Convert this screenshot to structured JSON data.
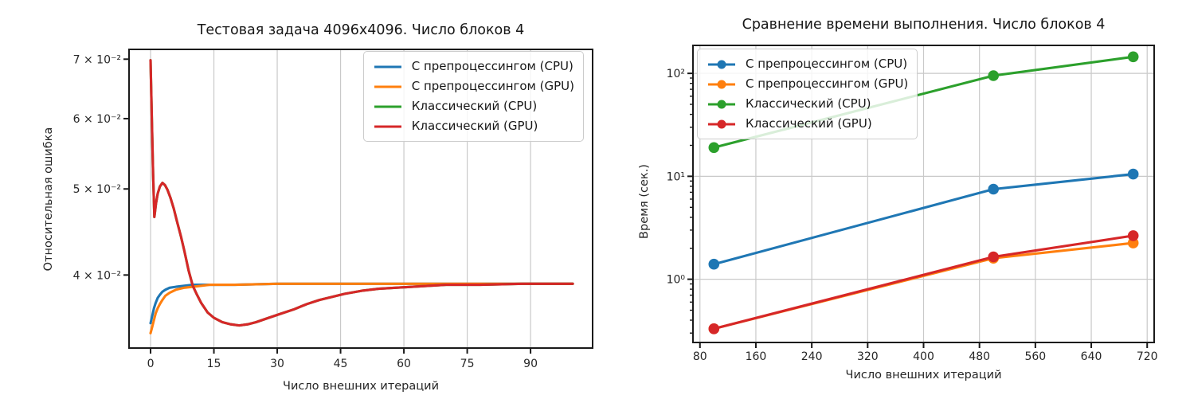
{
  "figure": {
    "background": "#ffffff"
  },
  "colors": {
    "grid": "#c9c9c9",
    "axis": "#1a1a1a",
    "text": "#262626",
    "blue": "#1f77b4",
    "orange": "#ff7f0e",
    "green": "#2ca02c",
    "red": "#d62728"
  },
  "chart_data": [
    {
      "id": "error-vs-iterations-chart",
      "type": "line",
      "title": "Тестовая задача 4096x4096. Число блоков 4",
      "xlabel": "Число внешних итераций",
      "ylabel": "Относительная ошибка",
      "x_scale": "linear",
      "y_scale": "log",
      "xlim": [
        -5.1,
        104.7
      ],
      "ylim": [
        0.0331,
        0.0718
      ],
      "x_ticks": [
        0,
        15,
        30,
        45,
        60,
        75,
        90
      ],
      "y_ticks": [
        {
          "v": 0.04,
          "label": "4 × 10⁻²"
        },
        {
          "v": 0.05,
          "label": "5 × 10⁻²"
        },
        {
          "v": 0.06,
          "label": "6 × 10⁻²"
        },
        {
          "v": 0.07,
          "label": "7 × 10⁻²"
        }
      ],
      "y_minor_ticks": false,
      "grid": {
        "vertical": true,
        "horizontal": false
      },
      "markers": false,
      "legend_position": "upper-right",
      "series": [
        {
          "name": "С препроцессингом (CPU)",
          "color": "#1f77b4",
          "points": [
            [
              0,
              0.0353
            ],
            [
              0.4,
              0.036
            ],
            [
              0.8,
              0.0367
            ],
            [
              1.2,
              0.0372
            ],
            [
              1.7,
              0.0377
            ],
            [
              2.2,
              0.038
            ],
            [
              2.8,
              0.0383
            ],
            [
              3.5,
              0.0385
            ],
            [
              4.5,
              0.0387
            ],
            [
              6,
              0.0388
            ],
            [
              8,
              0.0389
            ],
            [
              10,
              0.039
            ],
            [
              14,
              0.039
            ],
            [
              20,
              0.039
            ],
            [
              30,
              0.0391
            ],
            [
              45,
              0.0391
            ],
            [
              60,
              0.0391
            ],
            [
              80,
              0.0391
            ],
            [
              100,
              0.0391
            ]
          ]
        },
        {
          "name": "С препроцессингом (GPU)",
          "color": "#ff7f0e",
          "points": [
            [
              0,
              0.0344
            ],
            [
              0.4,
              0.035
            ],
            [
              0.8,
              0.0356
            ],
            [
              1.2,
              0.0362
            ],
            [
              1.7,
              0.0367
            ],
            [
              2.2,
              0.0371
            ],
            [
              2.8,
              0.0375
            ],
            [
              3.5,
              0.0379
            ],
            [
              4.5,
              0.0382
            ],
            [
              6,
              0.0385
            ],
            [
              8,
              0.0387
            ],
            [
              10,
              0.0388
            ],
            [
              14,
              0.039
            ],
            [
              20,
              0.039
            ],
            [
              30,
              0.0391
            ],
            [
              45,
              0.0391
            ],
            [
              60,
              0.0391
            ],
            [
              80,
              0.0391
            ],
            [
              100,
              0.0391
            ]
          ]
        },
        {
          "name": "Классический (CPU)",
          "color": "#2ca02c",
          "points": [
            [
              0,
              0.0698
            ],
            [
              0.3,
              0.06
            ],
            [
              0.6,
              0.052
            ],
            [
              0.9,
              0.0465
            ],
            [
              1.3,
              0.0482
            ],
            [
              1.7,
              0.0494
            ],
            [
              2.2,
              0.0503
            ],
            [
              2.8,
              0.0508
            ],
            [
              3.4,
              0.0505
            ],
            [
              4,
              0.0499
            ],
            [
              4.7,
              0.0489
            ],
            [
              5.5,
              0.0475
            ],
            [
              6.3,
              0.0459
            ],
            [
              7.2,
              0.0442
            ],
            [
              8,
              0.0426
            ],
            [
              9,
              0.0405
            ],
            [
              10,
              0.0389
            ],
            [
              11,
              0.038
            ],
            [
              12,
              0.0372
            ],
            [
              13.5,
              0.0363
            ],
            [
              15,
              0.0358
            ],
            [
              17,
              0.0354
            ],
            [
              19,
              0.0352
            ],
            [
              21,
              0.0351
            ],
            [
              23,
              0.0352
            ],
            [
              25,
              0.0354
            ],
            [
              28,
              0.0358
            ],
            [
              31,
              0.0362
            ],
            [
              34,
              0.0366
            ],
            [
              37,
              0.0371
            ],
            [
              40,
              0.0375
            ],
            [
              43,
              0.0378
            ],
            [
              46,
              0.0381
            ],
            [
              50,
              0.0384
            ],
            [
              54,
              0.0386
            ],
            [
              58,
              0.0387
            ],
            [
              62,
              0.0388
            ],
            [
              66,
              0.0389
            ],
            [
              70,
              0.039
            ],
            [
              78,
              0.039
            ],
            [
              88,
              0.0391
            ],
            [
              100,
              0.0391
            ]
          ]
        },
        {
          "name": "Классический (GPU)",
          "color": "#d62728",
          "points": [
            [
              0,
              0.0698
            ],
            [
              0.3,
              0.06
            ],
            [
              0.6,
              0.052
            ],
            [
              0.9,
              0.0465
            ],
            [
              1.3,
              0.0482
            ],
            [
              1.7,
              0.0494
            ],
            [
              2.2,
              0.0503
            ],
            [
              2.8,
              0.0508
            ],
            [
              3.4,
              0.0505
            ],
            [
              4,
              0.0499
            ],
            [
              4.7,
              0.0489
            ],
            [
              5.5,
              0.0475
            ],
            [
              6.3,
              0.0459
            ],
            [
              7.2,
              0.0442
            ],
            [
              8,
              0.0426
            ],
            [
              9,
              0.0405
            ],
            [
              10,
              0.0389
            ],
            [
              11,
              0.038
            ],
            [
              12,
              0.0372
            ],
            [
              13.5,
              0.0363
            ],
            [
              15,
              0.0358
            ],
            [
              17,
              0.0354
            ],
            [
              19,
              0.0352
            ],
            [
              21,
              0.0351
            ],
            [
              23,
              0.0352
            ],
            [
              25,
              0.0354
            ],
            [
              28,
              0.0358
            ],
            [
              31,
              0.0362
            ],
            [
              34,
              0.0366
            ],
            [
              37,
              0.0371
            ],
            [
              40,
              0.0375
            ],
            [
              43,
              0.0378
            ],
            [
              46,
              0.0381
            ],
            [
              50,
              0.0384
            ],
            [
              54,
              0.0386
            ],
            [
              58,
              0.0387
            ],
            [
              62,
              0.0388
            ],
            [
              66,
              0.0389
            ],
            [
              70,
              0.039
            ],
            [
              78,
              0.039
            ],
            [
              88,
              0.0391
            ],
            [
              100,
              0.0391
            ]
          ]
        }
      ]
    },
    {
      "id": "time-vs-iterations-chart",
      "type": "line",
      "title": "Сравнение времени выполнения. Число блоков 4",
      "xlabel": "Число внешних итераций",
      "ylabel": "Время (сек.)",
      "x_scale": "linear",
      "y_scale": "log",
      "xlim": [
        70,
        730
      ],
      "ylim": [
        0.243,
        187
      ],
      "x_ticks": [
        80,
        160,
        240,
        320,
        400,
        480,
        560,
        640,
        720
      ],
      "y_ticks": [
        {
          "v": 1,
          "label": "10⁰"
        },
        {
          "v": 10,
          "label": "10¹"
        },
        {
          "v": 100,
          "label": "10²"
        }
      ],
      "y_minor_ticks": true,
      "grid": {
        "vertical": true,
        "horizontal": true
      },
      "markers": true,
      "legend_position": "upper-left",
      "series": [
        {
          "name": "С препроцессингом (CPU)",
          "color": "#1f77b4",
          "points": [
            [
              100,
              1.4
            ],
            [
              500,
              7.5
            ],
            [
              700,
              10.5
            ]
          ]
        },
        {
          "name": "С препроцессингом (GPU)",
          "color": "#ff7f0e",
          "points": [
            [
              100,
              0.33
            ],
            [
              500,
              1.6
            ],
            [
              700,
              2.25
            ]
          ]
        },
        {
          "name": "Классический (CPU)",
          "color": "#2ca02c",
          "points": [
            [
              100,
              19
            ],
            [
              500,
              95
            ],
            [
              700,
              145
            ]
          ]
        },
        {
          "name": "Классический (GPU)",
          "color": "#d62728",
          "points": [
            [
              100,
              0.33
            ],
            [
              500,
              1.65
            ],
            [
              700,
              2.65
            ]
          ]
        }
      ]
    }
  ]
}
